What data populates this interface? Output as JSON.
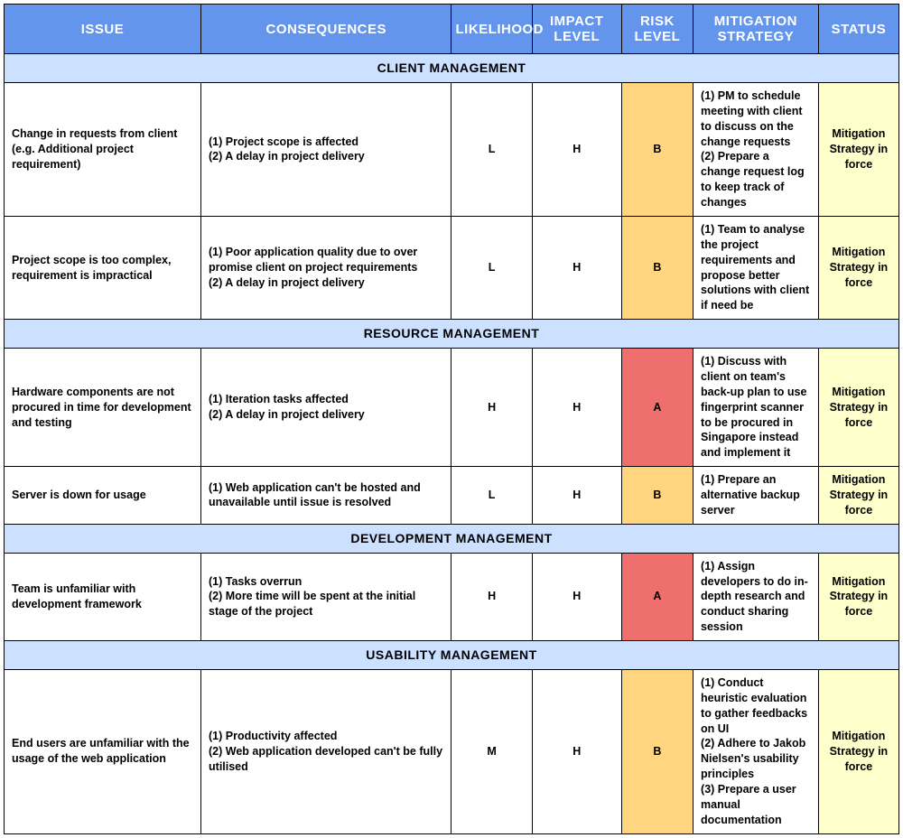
{
  "table": {
    "columns": [
      {
        "key": "issue",
        "label": "ISSUE",
        "class": "col-issue"
      },
      {
        "key": "consequences",
        "label": "CONSEQUENCES",
        "class": "col-conseq"
      },
      {
        "key": "likelihood",
        "label": "LIKELIHOOD",
        "class": "col-like"
      },
      {
        "key": "impact",
        "label": "IMPACT LEVEL",
        "class": "col-impact"
      },
      {
        "key": "risk",
        "label": "RISK LEVEL",
        "class": "col-risk"
      },
      {
        "key": "mitigation",
        "label": "MITIGATION STRATEGY",
        "class": "col-mit"
      },
      {
        "key": "status",
        "label": "STATUS",
        "class": "col-status"
      }
    ],
    "header_bg": "#6495ed",
    "header_color": "#ffffff",
    "section_bg": "#cce0ff",
    "risk_colors": {
      "A": "#ef6f6f",
      "B": "#ffd580"
    },
    "status_bg": "#ffffcc",
    "border_color": "#000000",
    "sections": [
      {
        "title": "CLIENT MANAGEMENT",
        "rows": [
          {
            "issue": "Change in requests from client (e.g. Additional project requirement)",
            "consequences": "(1) Project scope is affected\n(2) A delay in project delivery",
            "likelihood": "L",
            "impact": "H",
            "risk": "B",
            "mitigation": "(1) PM to schedule meeting with client to discuss on the change requests\n(2) Prepare a change request log to keep track of changes",
            "status": "Mitigation Strategy in force"
          },
          {
            "issue": "Project scope is too complex, requirement is impractical",
            "consequences": "(1) Poor application quality due to over promise client on project requirements\n(2) A delay in project delivery",
            "likelihood": "L",
            "impact": "H",
            "risk": "B",
            "mitigation": "(1) Team to analyse the project requirements and propose better solutions with client if need be",
            "status": "Mitigation Strategy in force"
          }
        ]
      },
      {
        "title": "RESOURCE MANAGEMENT",
        "rows": [
          {
            "issue": "Hardware components are not procured in time for development and testing",
            "consequences": "(1) Iteration tasks affected\n(2) A delay in project delivery",
            "likelihood": "H",
            "impact": "H",
            "risk": "A",
            "mitigation": "(1) Discuss with client on team's back-up plan to use fingerprint scanner to be procured in Singapore instead and implement it",
            "status": "Mitigation Strategy in force"
          },
          {
            "issue": "Server is down for usage",
            "consequences": "(1) Web application can't be hosted and unavailable until issue is resolved",
            "likelihood": "L",
            "impact": "H",
            "risk": "B",
            "mitigation": "(1) Prepare an alternative backup server",
            "status": "Mitigation Strategy in force"
          }
        ]
      },
      {
        "title": "DEVELOPMENT MANAGEMENT",
        "rows": [
          {
            "issue": "Team is unfamiliar with development framework",
            "consequences": "(1) Tasks overrun\n(2) More time will be spent at the initial stage of the project",
            "likelihood": "H",
            "impact": "H",
            "risk": "A",
            "mitigation": "(1) Assign developers to do in-depth research and conduct sharing session",
            "status": "Mitigation Strategy in force"
          }
        ]
      },
      {
        "title": "USABILITY MANAGEMENT",
        "rows": [
          {
            "issue": "End users are unfamiliar with the usage of the web application",
            "consequences": "(1) Productivity affected\n(2) Web application developed can't be fully utilised",
            "likelihood": "M",
            "impact": "H",
            "risk": "B",
            "mitigation": "(1) Conduct heuristic evaluation to gather feedbacks on UI\n(2) Adhere to Jakob Nielsen's usability principles\n(3) Prepare a user manual documentation",
            "status": "Mitigation Strategy in force"
          }
        ]
      }
    ]
  }
}
